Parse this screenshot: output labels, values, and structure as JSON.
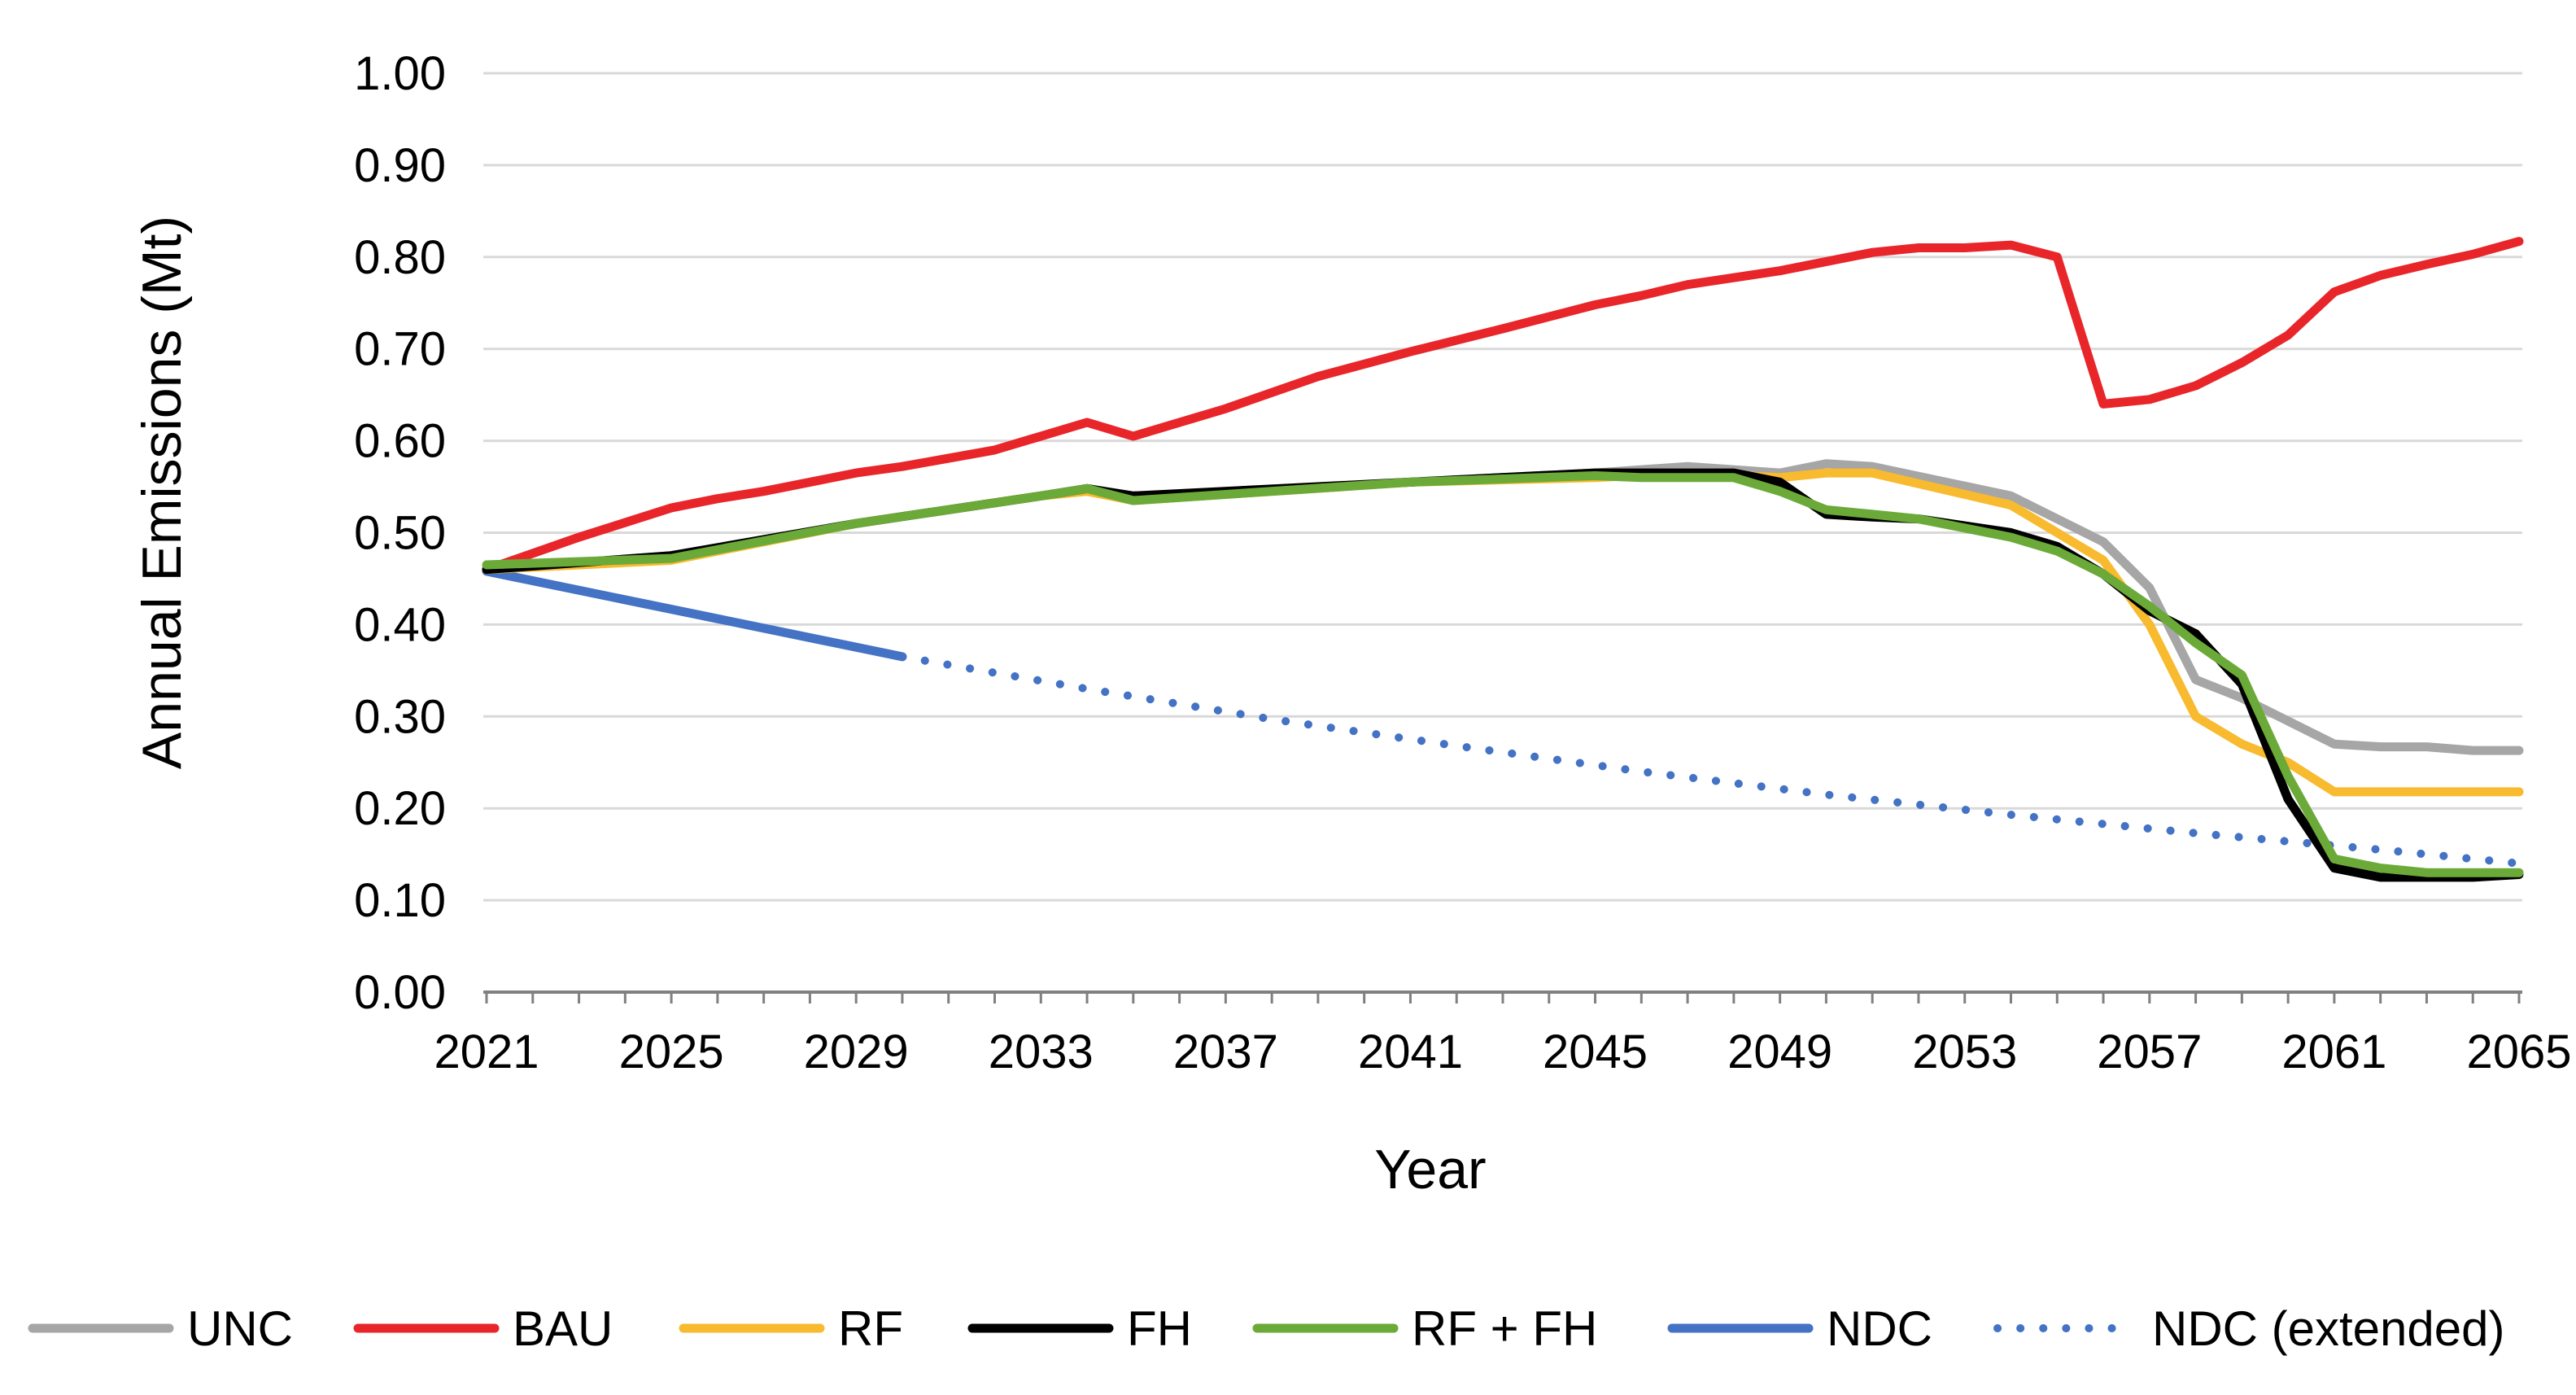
{
  "chart_data": {
    "type": "line",
    "title": "",
    "xlabel": "Year",
    "ylabel": "Annual Emissions (Mt)",
    "xlim": [
      2021,
      2065
    ],
    "ylim": [
      0,
      1.0
    ],
    "grid": true,
    "legend_position": "bottom",
    "x_ticks": [
      "2021",
      "2025",
      "2029",
      "2033",
      "2037",
      "2041",
      "2045",
      "2049",
      "2053",
      "2057",
      "2061",
      "2065"
    ],
    "y_ticks": [
      "0.00",
      "0.10",
      "0.20",
      "0.30",
      "0.40",
      "0.50",
      "0.60",
      "0.70",
      "0.80",
      "0.90",
      "1.00"
    ],
    "series": [
      {
        "name": "UNC",
        "color": "#A6A6A6",
        "style": "solid",
        "points": [
          [
            2021,
            0.46
          ],
          [
            2025,
            0.475
          ],
          [
            2029,
            0.51
          ],
          [
            2033,
            0.54
          ],
          [
            2034,
            0.548
          ],
          [
            2035,
            0.538
          ],
          [
            2041,
            0.555
          ],
          [
            2045,
            0.565
          ],
          [
            2047,
            0.572
          ],
          [
            2049,
            0.565
          ],
          [
            2050,
            0.575
          ],
          [
            2051,
            0.572
          ],
          [
            2054,
            0.54
          ],
          [
            2056,
            0.49
          ],
          [
            2057,
            0.44
          ],
          [
            2058,
            0.34
          ],
          [
            2059,
            0.32
          ],
          [
            2060,
            0.295
          ],
          [
            2061,
            0.27
          ],
          [
            2062,
            0.267
          ],
          [
            2063,
            0.267
          ],
          [
            2064,
            0.263
          ],
          [
            2065,
            0.263
          ]
        ]
      },
      {
        "name": "BAU",
        "color": "#E8262A",
        "style": "solid",
        "points": [
          [
            2021,
            0.46
          ],
          [
            2023,
            0.495
          ],
          [
            2025,
            0.527
          ],
          [
            2026,
            0.537
          ],
          [
            2027,
            0.545
          ],
          [
            2029,
            0.565
          ],
          [
            2030,
            0.572
          ],
          [
            2032,
            0.59
          ],
          [
            2034,
            0.62
          ],
          [
            2035,
            0.605
          ],
          [
            2037,
            0.635
          ],
          [
            2039,
            0.67
          ],
          [
            2041,
            0.697
          ],
          [
            2043,
            0.722
          ],
          [
            2045,
            0.748
          ],
          [
            2046,
            0.758
          ],
          [
            2047,
            0.77
          ],
          [
            2049,
            0.785
          ],
          [
            2051,
            0.805
          ],
          [
            2052,
            0.81
          ],
          [
            2053,
            0.81
          ],
          [
            2054,
            0.813
          ],
          [
            2055,
            0.8
          ],
          [
            2056,
            0.64
          ],
          [
            2057,
            0.645
          ],
          [
            2058,
            0.66
          ],
          [
            2059,
            0.685
          ],
          [
            2060,
            0.715
          ],
          [
            2061,
            0.762
          ],
          [
            2062,
            0.78
          ],
          [
            2063,
            0.792
          ],
          [
            2064,
            0.803
          ],
          [
            2065,
            0.817
          ]
        ]
      },
      {
        "name": "RF",
        "color": "#F8BA2E",
        "style": "solid",
        "points": [
          [
            2021,
            0.46
          ],
          [
            2025,
            0.47
          ],
          [
            2029,
            0.51
          ],
          [
            2033,
            0.54
          ],
          [
            2034,
            0.545
          ],
          [
            2035,
            0.535
          ],
          [
            2041,
            0.555
          ],
          [
            2045,
            0.56
          ],
          [
            2047,
            0.565
          ],
          [
            2049,
            0.56
          ],
          [
            2050,
            0.565
          ],
          [
            2051,
            0.565
          ],
          [
            2054,
            0.53
          ],
          [
            2056,
            0.47
          ],
          [
            2057,
            0.4
          ],
          [
            2058,
            0.3
          ],
          [
            2059,
            0.27
          ],
          [
            2060,
            0.25
          ],
          [
            2061,
            0.218
          ],
          [
            2062,
            0.218
          ],
          [
            2063,
            0.218
          ],
          [
            2064,
            0.218
          ],
          [
            2065,
            0.218
          ]
        ]
      },
      {
        "name": "FH",
        "color": "#000000",
        "style": "solid",
        "points": [
          [
            2021,
            0.46
          ],
          [
            2025,
            0.475
          ],
          [
            2029,
            0.51
          ],
          [
            2033,
            0.54
          ],
          [
            2034,
            0.548
          ],
          [
            2035,
            0.54
          ],
          [
            2041,
            0.555
          ],
          [
            2045,
            0.565
          ],
          [
            2047,
            0.565
          ],
          [
            2048,
            0.565
          ],
          [
            2049,
            0.555
          ],
          [
            2050,
            0.52
          ],
          [
            2051,
            0.517
          ],
          [
            2052,
            0.515
          ],
          [
            2054,
            0.5
          ],
          [
            2055,
            0.485
          ],
          [
            2056,
            0.455
          ],
          [
            2057,
            0.415
          ],
          [
            2058,
            0.39
          ],
          [
            2059,
            0.335
          ],
          [
            2060,
            0.21
          ],
          [
            2061,
            0.135
          ],
          [
            2062,
            0.125
          ],
          [
            2063,
            0.125
          ],
          [
            2064,
            0.125
          ],
          [
            2065,
            0.128
          ]
        ]
      },
      {
        "name": "RF + FH",
        "color": "#6BAA38",
        "style": "solid",
        "points": [
          [
            2021,
            0.465
          ],
          [
            2025,
            0.472
          ],
          [
            2029,
            0.51
          ],
          [
            2033,
            0.54
          ],
          [
            2034,
            0.548
          ],
          [
            2035,
            0.535
          ],
          [
            2041,
            0.555
          ],
          [
            2045,
            0.562
          ],
          [
            2046,
            0.56
          ],
          [
            2048,
            0.56
          ],
          [
            2049,
            0.545
          ],
          [
            2050,
            0.525
          ],
          [
            2051,
            0.52
          ],
          [
            2052,
            0.515
          ],
          [
            2054,
            0.495
          ],
          [
            2055,
            0.48
          ],
          [
            2056,
            0.455
          ],
          [
            2057,
            0.42
          ],
          [
            2058,
            0.38
          ],
          [
            2059,
            0.345
          ],
          [
            2060,
            0.235
          ],
          [
            2061,
            0.145
          ],
          [
            2062,
            0.135
          ],
          [
            2063,
            0.13
          ],
          [
            2064,
            0.13
          ],
          [
            2065,
            0.13
          ]
        ]
      },
      {
        "name": "NDC",
        "color": "#4472C4",
        "style": "solid",
        "points": [
          [
            2021,
            0.458
          ],
          [
            2030,
            0.365
          ]
        ]
      },
      {
        "name": "NDC (extended)",
        "color": "#4472C4",
        "style": "dotted",
        "points": [
          [
            2030,
            0.365
          ],
          [
            2034,
            0.33
          ],
          [
            2038,
            0.297
          ],
          [
            2042,
            0.268
          ],
          [
            2046,
            0.24
          ],
          [
            2050,
            0.215
          ],
          [
            2054,
            0.193
          ],
          [
            2058,
            0.173
          ],
          [
            2062,
            0.155
          ],
          [
            2065,
            0.14
          ]
        ]
      }
    ]
  }
}
